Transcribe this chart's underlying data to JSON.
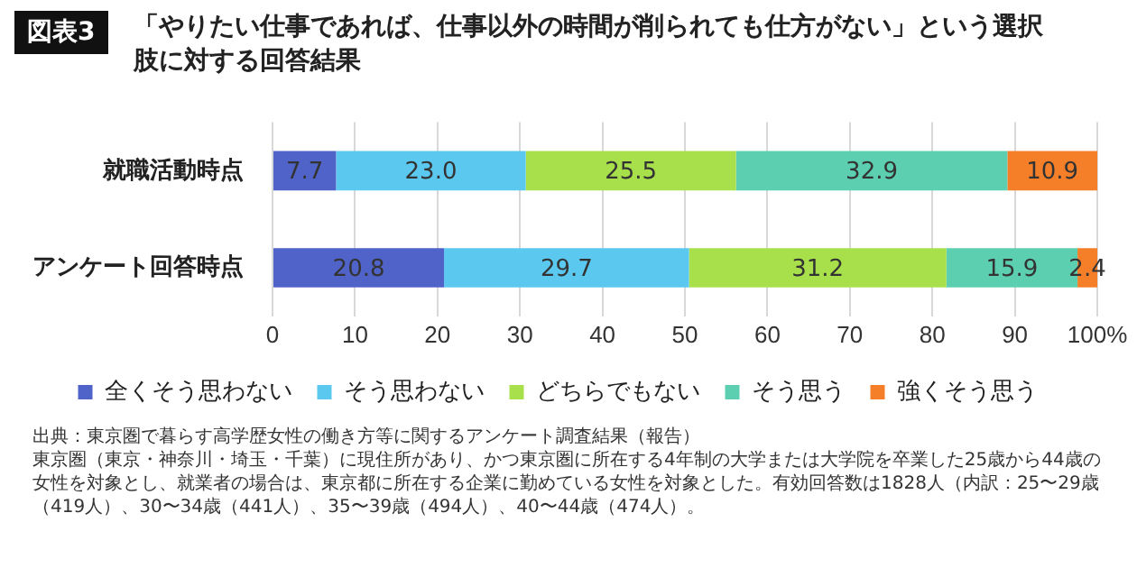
{
  "chart_data": {
    "type": "bar",
    "orientation": "horizontal",
    "stacked": true,
    "title": "「やりたい仕事であれば、仕事以外の時間が削られても仕方がない」という選択肢に対する回答結果",
    "annotations": [
      "図表3",
      "出典：東京圏で暮らす高学歴女性の働き方等に関するアンケート調査結果（報告）",
      "東京圏（東京・神奈川・埼玉・千葉）に現住所があり、かつ東京圏に所在する4年制の大学または大学院を卒業した25歳から44歳の女性を対象とし、就業者の場合は、東京都に所在する企業に勤めている女性を対象とした。有効回答数は1828人（内訳：25〜29歳（419人）、30〜34歳（441人）、35〜39歳（494人）、40〜44歳（474人）。"
    ],
    "categories": [
      "就職活動時点",
      "アンケート回答時点"
    ],
    "series": [
      {
        "name": "全くそう思わない",
        "color": "#4f63c8",
        "values": [
          7.7,
          20.8
        ],
        "value_labels": [
          "7.7",
          "20.8"
        ]
      },
      {
        "name": "そう思わない",
        "color": "#5bc8f0",
        "values": [
          23.0,
          29.7
        ],
        "value_labels": [
          "23.0",
          "29.7"
        ]
      },
      {
        "name": "どちらでもない",
        "color": "#a8e04c",
        "values": [
          25.5,
          31.2
        ],
        "value_labels": [
          "25.5",
          "31.2"
        ]
      },
      {
        "name": "そう思う",
        "color": "#5ccfb0",
        "values": [
          32.9,
          15.9
        ],
        "value_labels": [
          "32.9",
          "15.9"
        ]
      },
      {
        "name": "強くそう思う",
        "color": "#f47f28",
        "values": [
          10.9,
          2.4
        ],
        "value_labels": [
          "10.9",
          "2.4"
        ]
      }
    ],
    "xlim": [
      0,
      100
    ],
    "xticks": [
      0,
      10,
      20,
      30,
      40,
      50,
      60,
      70,
      80,
      90,
      {
        "value": 100,
        "label": "100%"
      }
    ],
    "grid": "x",
    "legend": "bottom"
  }
}
